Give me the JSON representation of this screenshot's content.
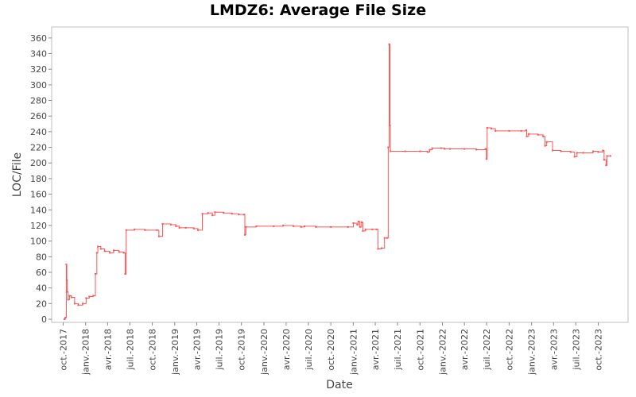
{
  "chart_data": {
    "type": "line",
    "title": "LMDZ6: Average File Size",
    "xlabel": "Date",
    "ylabel": "LOC/File",
    "ylim": [
      0,
      370
    ],
    "xlim": [
      "2017-08-15",
      "2024-01-31"
    ],
    "grid": false,
    "legend": "none",
    "y_ticks": [
      0,
      20,
      40,
      60,
      80,
      100,
      120,
      140,
      160,
      180,
      200,
      220,
      240,
      260,
      280,
      300,
      320,
      340,
      360
    ],
    "x_ticks": [
      {
        "date": "2017-10-01",
        "label": "oct.-2017"
      },
      {
        "date": "2018-01-01",
        "label": "janv.-2018"
      },
      {
        "date": "2018-04-01",
        "label": "avr.-2018"
      },
      {
        "date": "2018-07-01",
        "label": "juil.-2018"
      },
      {
        "date": "2018-10-01",
        "label": "oct.-2018"
      },
      {
        "date": "2019-01-01",
        "label": "janv.-2019"
      },
      {
        "date": "2019-04-01",
        "label": "avr.-2019"
      },
      {
        "date": "2019-07-01",
        "label": "juil.-2019"
      },
      {
        "date": "2019-10-01",
        "label": "oct.-2019"
      },
      {
        "date": "2020-01-01",
        "label": "janv.-2020"
      },
      {
        "date": "2020-04-01",
        "label": "avr.-2020"
      },
      {
        "date": "2020-07-01",
        "label": "juil.-2020"
      },
      {
        "date": "2020-10-01",
        "label": "oct.-2020"
      },
      {
        "date": "2021-01-01",
        "label": "janv.-2021"
      },
      {
        "date": "2021-04-01",
        "label": "avr.-2021"
      },
      {
        "date": "2021-07-01",
        "label": "juil.-2021"
      },
      {
        "date": "2021-10-01",
        "label": "oct.-2021"
      },
      {
        "date": "2022-01-01",
        "label": "janv.-2022"
      },
      {
        "date": "2022-04-01",
        "label": "avr.-2022"
      },
      {
        "date": "2022-07-01",
        "label": "juil.-2022"
      },
      {
        "date": "2022-10-01",
        "label": "oct.-2022"
      },
      {
        "date": "2023-01-01",
        "label": "janv.-2023"
      },
      {
        "date": "2023-04-01",
        "label": "avr.-2023"
      },
      {
        "date": "2023-07-01",
        "label": "juil.-2023"
      },
      {
        "date": "2023-10-01",
        "label": "oct.-2023"
      }
    ],
    "series": [
      {
        "line_color": "#ff5555",
        "points": [
          {
            "x": "2017-10-06",
            "y": 0
          },
          {
            "x": "2017-10-10",
            "y": 2
          },
          {
            "x": "2017-10-14",
            "y": 70
          },
          {
            "x": "2017-10-16",
            "y": 50
          },
          {
            "x": "2017-10-18",
            "y": 35
          },
          {
            "x": "2017-10-21",
            "y": 25
          },
          {
            "x": "2017-10-27",
            "y": 30
          },
          {
            "x": "2017-11-04",
            "y": 28
          },
          {
            "x": "2017-11-17",
            "y": 20
          },
          {
            "x": "2017-12-02",
            "y": 18
          },
          {
            "x": "2017-12-20",
            "y": 20
          },
          {
            "x": "2018-01-03",
            "y": 27
          },
          {
            "x": "2018-01-16",
            "y": 29
          },
          {
            "x": "2018-02-01",
            "y": 30
          },
          {
            "x": "2018-02-10",
            "y": 58
          },
          {
            "x": "2018-02-16",
            "y": 85
          },
          {
            "x": "2018-02-20",
            "y": 93
          },
          {
            "x": "2018-03-04",
            "y": 90
          },
          {
            "x": "2018-03-20",
            "y": 87
          },
          {
            "x": "2018-04-10",
            "y": 85
          },
          {
            "x": "2018-04-26",
            "y": 88
          },
          {
            "x": "2018-05-18",
            "y": 86
          },
          {
            "x": "2018-06-06",
            "y": 85
          },
          {
            "x": "2018-06-12",
            "y": 58
          },
          {
            "x": "2018-06-16",
            "y": 114
          },
          {
            "x": "2018-07-20",
            "y": 115
          },
          {
            "x": "2018-09-01",
            "y": 114
          },
          {
            "x": "2018-10-20",
            "y": 114
          },
          {
            "x": "2018-10-28",
            "y": 106
          },
          {
            "x": "2018-11-12",
            "y": 122
          },
          {
            "x": "2018-12-16",
            "y": 121
          },
          {
            "x": "2019-01-06",
            "y": 119
          },
          {
            "x": "2019-01-20",
            "y": 117
          },
          {
            "x": "2019-02-15",
            "y": 117
          },
          {
            "x": "2019-03-20",
            "y": 116
          },
          {
            "x": "2019-04-06",
            "y": 114
          },
          {
            "x": "2019-04-24",
            "y": 135
          },
          {
            "x": "2019-05-17",
            "y": 136
          },
          {
            "x": "2019-06-04",
            "y": 133
          },
          {
            "x": "2019-06-14",
            "y": 137
          },
          {
            "x": "2019-07-20",
            "y": 136
          },
          {
            "x": "2019-08-23",
            "y": 135
          },
          {
            "x": "2019-09-20",
            "y": 134
          },
          {
            "x": "2019-10-12",
            "y": 134
          },
          {
            "x": "2019-10-15",
            "y": 108
          },
          {
            "x": "2019-10-19",
            "y": 118
          },
          {
            "x": "2019-12-01",
            "y": 119
          },
          {
            "x": "2020-02-10",
            "y": 119
          },
          {
            "x": "2020-03-20",
            "y": 120
          },
          {
            "x": "2020-05-01",
            "y": 119
          },
          {
            "x": "2020-06-01",
            "y": 118
          },
          {
            "x": "2020-06-15",
            "y": 119
          },
          {
            "x": "2020-08-01",
            "y": 118
          },
          {
            "x": "2020-10-01",
            "y": 118
          },
          {
            "x": "2020-12-10",
            "y": 118
          },
          {
            "x": "2021-01-01",
            "y": 123
          },
          {
            "x": "2021-01-17",
            "y": 121
          },
          {
            "x": "2021-01-22",
            "y": 125
          },
          {
            "x": "2021-01-28",
            "y": 118
          },
          {
            "x": "2021-02-04",
            "y": 124
          },
          {
            "x": "2021-02-09",
            "y": 113
          },
          {
            "x": "2021-02-20",
            "y": 115
          },
          {
            "x": "2021-03-20",
            "y": 115
          },
          {
            "x": "2021-04-06",
            "y": 115
          },
          {
            "x": "2021-04-12",
            "y": 90
          },
          {
            "x": "2021-04-27",
            "y": 91
          },
          {
            "x": "2021-05-09",
            "y": 104
          },
          {
            "x": "2021-05-20",
            "y": 104
          },
          {
            "x": "2021-05-24",
            "y": 220
          },
          {
            "x": "2021-05-28",
            "y": 352
          },
          {
            "x": "2021-05-31",
            "y": 248
          },
          {
            "x": "2021-06-02",
            "y": 215
          },
          {
            "x": "2021-08-01",
            "y": 215
          },
          {
            "x": "2021-10-01",
            "y": 215
          },
          {
            "x": "2021-11-01",
            "y": 214
          },
          {
            "x": "2021-11-10",
            "y": 217
          },
          {
            "x": "2021-11-20",
            "y": 219
          },
          {
            "x": "2021-12-26",
            "y": 219
          },
          {
            "x": "2022-01-10",
            "y": 218
          },
          {
            "x": "2022-02-01",
            "y": 218
          },
          {
            "x": "2022-04-01",
            "y": 218
          },
          {
            "x": "2022-05-20",
            "y": 217
          },
          {
            "x": "2022-06-26",
            "y": 218
          },
          {
            "x": "2022-06-30",
            "y": 205
          },
          {
            "x": "2022-07-03",
            "y": 245
          },
          {
            "x": "2022-07-20",
            "y": 244
          },
          {
            "x": "2022-08-06",
            "y": 241
          },
          {
            "x": "2022-10-01",
            "y": 241
          },
          {
            "x": "2022-11-20",
            "y": 241
          },
          {
            "x": "2022-12-10",
            "y": 242
          },
          {
            "x": "2022-12-12",
            "y": 234
          },
          {
            "x": "2022-12-20",
            "y": 237
          },
          {
            "x": "2023-01-27",
            "y": 236
          },
          {
            "x": "2023-02-17",
            "y": 234
          },
          {
            "x": "2023-02-25",
            "y": 222
          },
          {
            "x": "2023-03-04",
            "y": 227
          },
          {
            "x": "2023-03-28",
            "y": 216
          },
          {
            "x": "2023-05-01",
            "y": 215
          },
          {
            "x": "2023-06-10",
            "y": 214
          },
          {
            "x": "2023-06-26",
            "y": 208
          },
          {
            "x": "2023-07-06",
            "y": 213
          },
          {
            "x": "2023-08-01",
            "y": 213
          },
          {
            "x": "2023-09-10",
            "y": 215
          },
          {
            "x": "2023-10-01",
            "y": 214
          },
          {
            "x": "2023-10-20",
            "y": 216
          },
          {
            "x": "2023-10-25",
            "y": 204
          },
          {
            "x": "2023-11-02",
            "y": 197
          },
          {
            "x": "2023-11-06",
            "y": 209
          },
          {
            "x": "2023-11-20",
            "y": 209
          }
        ]
      }
    ]
  }
}
